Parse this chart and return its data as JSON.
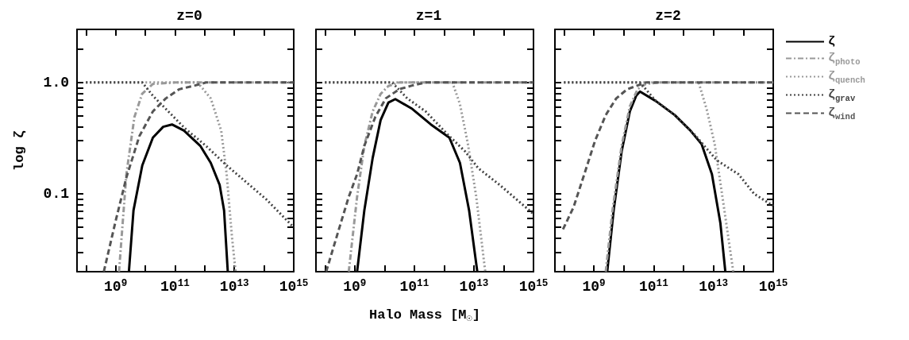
{
  "chart_data": [
    {
      "type": "line",
      "title": "z=0",
      "ylabel": "log ζ",
      "log": "xy",
      "legend": false,
      "xlim": [
        50000000.0,
        1000000000000000.0
      ],
      "ylim": [
        0.02,
        3
      ],
      "xticks": [
        {
          "value": 100000000.0,
          "label": null
        },
        {
          "value": 1000000000.0,
          "label": "10$^{9}$"
        },
        {
          "value": 10000000000.0,
          "label": null
        },
        {
          "value": 100000000000.0,
          "label": "10$^{11}$"
        },
        {
          "value": 1000000000000.0,
          "label": null
        },
        {
          "value": 10000000000000.0,
          "label": "10$^{13}$"
        },
        {
          "value": 100000000000000.0,
          "label": null
        },
        {
          "value": 1000000000000000.0,
          "label": "10$^{15}$"
        }
      ],
      "yticks": [
        {
          "value": 0.02,
          "label": null
        },
        {
          "value": 0.03,
          "label": null
        },
        {
          "value": 0.04,
          "label": null
        },
        {
          "value": 0.05,
          "label": null
        },
        {
          "value": 0.06,
          "label": null
        },
        {
          "value": 0.07,
          "label": null
        },
        {
          "value": 0.08,
          "label": null
        },
        {
          "value": 0.09,
          "label": null
        },
        {
          "value": 0.1,
          "label": "0.1"
        },
        {
          "value": 0.2,
          "label": null
        },
        {
          "value": 0.3,
          "label": null
        },
        {
          "value": 0.4,
          "label": null
        },
        {
          "value": 0.5,
          "label": null
        },
        {
          "value": 0.6,
          "label": null
        },
        {
          "value": 0.7,
          "label": null
        },
        {
          "value": 0.8,
          "label": null
        },
        {
          "value": 0.9,
          "label": null
        },
        {
          "value": 1,
          "label": "1.0"
        },
        {
          "value": 2,
          "label": null
        },
        {
          "value": 3,
          "label": null
        }
      ],
      "series": [
        {
          "color": "#000000",
          "line_style": "solid",
          "x": [
            2800000000.0,
            4000000000.0,
            7900000000.0,
            18000000000.0,
            40000000000.0,
            79000000000.0,
            200000000000.0,
            710000000000.0,
            1600000000000.0,
            3200000000000.0,
            4500000000000.0,
            6000000000000.0
          ],
          "values": [
            0.02,
            0.071,
            0.18,
            0.32,
            0.4,
            0.42,
            0.37,
            0.27,
            0.19,
            0.12,
            0.071,
            0.02
          ]
        },
        {
          "color": "#999999",
          "line_style": "dashdot",
          "x": [
            1300000000.0,
            2300000000.0,
            4300000000.0,
            7800000000.0,
            18000000000.0,
            100000000000.0,
            1000000000000000.0
          ],
          "values": [
            0.02,
            0.15,
            0.49,
            0.79,
            0.97,
            1,
            1
          ]
        },
        {
          "color": "#999999",
          "line_style": "dotted",
          "x": [
            100000000.0,
            580000000000.0,
            1600000000000.0,
            3600000000000.0,
            5500000000000.0,
            8300000000000.0,
            11000000000000.0
          ],
          "values": [
            1,
            1,
            0.72,
            0.37,
            0.15,
            0.041,
            0.02
          ]
        },
        {
          "color": "#444444",
          "line_style": "dotted",
          "x": [
            100000000.0,
            7900000000.0,
            18000000000.0,
            49000000000.0,
            210000000000.0,
            1100000000000.0,
            5500000000000.0,
            23000000000000.0,
            120000000000000.0,
            1000000000000000.0
          ],
          "values": [
            1,
            1,
            0.76,
            0.58,
            0.39,
            0.27,
            0.18,
            0.13,
            0.089,
            0.05
          ]
        },
        {
          "color": "#555555",
          "line_style": "dashed",
          "x": [
            400000000.0,
            1000000000.0,
            2300000000.0,
            6300000000.0,
            18000000000.0,
            49000000000.0,
            140000000000.0,
            470000000000.0,
            1100000000000.0,
            1000000000000000.0
          ],
          "values": [
            0.02,
            0.057,
            0.14,
            0.33,
            0.55,
            0.72,
            0.87,
            0.94,
            1,
            1
          ]
        }
      ]
    },
    {
      "type": "line",
      "title": "z=1",
      "xlabel": "Halo Mass [M$_{☉}$]",
      "log": "xy",
      "legend": false,
      "tick_labels": "x",
      "xlim": [
        50000000.0,
        1000000000000000.0
      ],
      "ylim": [
        0.02,
        3
      ],
      "xticks": [
        {
          "value": 100000000.0,
          "label": null
        },
        {
          "value": 1000000000.0,
          "label": "10$^{9}$"
        },
        {
          "value": 10000000000.0,
          "label": null
        },
        {
          "value": 100000000000.0,
          "label": "10$^{11}$"
        },
        {
          "value": 1000000000000.0,
          "label": null
        },
        {
          "value": 10000000000000.0,
          "label": "10$^{13}$"
        },
        {
          "value": 100000000000000.0,
          "label": null
        },
        {
          "value": 1000000000000000.0,
          "label": "10$^{15}$"
        }
      ],
      "yticks": [
        {
          "value": 0.02,
          "label": null
        },
        {
          "value": 0.03,
          "label": null
        },
        {
          "value": 0.04,
          "label": null
        },
        {
          "value": 0.05,
          "label": null
        },
        {
          "value": 0.06,
          "label": null
        },
        {
          "value": 0.07,
          "label": null
        },
        {
          "value": 0.08,
          "label": null
        },
        {
          "value": 0.09,
          "label": null
        },
        {
          "value": 0.1,
          "label": null
        },
        {
          "value": 0.2,
          "label": null
        },
        {
          "value": 0.3,
          "label": null
        },
        {
          "value": 0.4,
          "label": null
        },
        {
          "value": 0.5,
          "label": null
        },
        {
          "value": 0.6,
          "label": null
        },
        {
          "value": 0.7,
          "label": null
        },
        {
          "value": 0.8,
          "label": null
        },
        {
          "value": 0.9,
          "label": null
        },
        {
          "value": 1,
          "label": null
        },
        {
          "value": 2,
          "label": null
        },
        {
          "value": 3,
          "label": null
        }
      ],
      "series": [
        {
          "color": "#000000",
          "line_style": "solid",
          "x": [
            1200000000.0,
            2100000000.0,
            4000000000.0,
            7400000000.0,
            13500000000.0,
            23000000000.0,
            85000000000.0,
            360000000000.0,
            1500000000000.0,
            3400000000000.0,
            6900000000000.0,
            13000000000000.0
          ],
          "values": [
            0.02,
            0.071,
            0.21,
            0.46,
            0.66,
            0.71,
            0.58,
            0.42,
            0.32,
            0.19,
            0.071,
            0.02
          ]
        },
        {
          "color": "#999999",
          "line_style": "dashdot",
          "x": [
            630000000.0,
            1200000000.0,
            2100000000.0,
            4000000000.0,
            7400000000.0,
            13500000000.0,
            31000000000.0,
            1000000000000000.0
          ],
          "values": [
            0.02,
            0.094,
            0.27,
            0.55,
            0.79,
            0.93,
            1,
            1
          ]
        },
        {
          "color": "#999999",
          "line_style": "dotted",
          "x": [
            100000000.0,
            1900000000000.0,
            3400000000000.0,
            6300000000000.0,
            12000000000000.0,
            24000000000000.0
          ],
          "values": [
            1,
            1,
            0.64,
            0.28,
            0.094,
            0.02
          ]
        },
        {
          "color": "#444444",
          "line_style": "dotted",
          "x": [
            100000000.0,
            18000000000.0,
            58000000000.0,
            240000000000.0,
            1200000000000.0,
            5100000000000.0,
            14000000000000.0,
            74000000000000.0,
            1000000000000000.0
          ],
          "values": [
            1,
            1,
            0.72,
            0.55,
            0.35,
            0.24,
            0.17,
            0.12,
            0.066
          ]
        },
        {
          "color": "#555555",
          "line_style": "dashed",
          "x": [
            110000000.0,
            280000000.0,
            630000000.0,
            1200000000.0,
            2100000000.0,
            4900000000.0,
            11000000000.0,
            31000000000.0,
            85000000000.0,
            240000000000.0,
            1000000000000000.0
          ],
          "values": [
            0.02,
            0.046,
            0.094,
            0.15,
            0.27,
            0.49,
            0.72,
            0.87,
            0.94,
            1,
            1
          ]
        }
      ]
    },
    {
      "type": "line",
      "title": "z=2",
      "log": "xy",
      "legend": "right",
      "tick_labels": "x",
      "xlim": [
        50000000.0,
        1000000000000000.0
      ],
      "ylim": [
        0.02,
        3
      ],
      "xticks": [
        {
          "value": 100000000.0,
          "label": null
        },
        {
          "value": 1000000000.0,
          "label": "10$^{9}$"
        },
        {
          "value": 10000000000.0,
          "label": null
        },
        {
          "value": 100000000000.0,
          "label": "10$^{11}$"
        },
        {
          "value": 1000000000000.0,
          "label": null
        },
        {
          "value": 10000000000000.0,
          "label": "10$^{13}$"
        },
        {
          "value": 100000000000000.0,
          "label": null
        },
        {
          "value": 1000000000000000.0,
          "label": "10$^{15}$"
        }
      ],
      "yticks": [
        {
          "value": 0.02,
          "label": null
        },
        {
          "value": 0.03,
          "label": null
        },
        {
          "value": 0.04,
          "label": null
        },
        {
          "value": 0.05,
          "label": null
        },
        {
          "value": 0.06,
          "label": null
        },
        {
          "value": 0.07,
          "label": null
        },
        {
          "value": 0.08,
          "label": null
        },
        {
          "value": 0.09,
          "label": null
        },
        {
          "value": 0.1,
          "label": null
        },
        {
          "value": 0.2,
          "label": null
        },
        {
          "value": 0.3,
          "label": null
        },
        {
          "value": 0.4,
          "label": null
        },
        {
          "value": 0.5,
          "label": null
        },
        {
          "value": 0.6,
          "label": null
        },
        {
          "value": 0.7,
          "label": null
        },
        {
          "value": 0.8,
          "label": null
        },
        {
          "value": 0.9,
          "label": null
        },
        {
          "value": 1,
          "label": null
        },
        {
          "value": 2,
          "label": null
        },
        {
          "value": 3,
          "label": null
        }
      ],
      "series": [
        {
          "name": "ζ",
          "color": "#000000",
          "line_style": "solid",
          "x": [
            2800000000.0,
            4600000000.0,
            8500000000.0,
            16000000000.0,
            26000000000.0,
            35000000000.0,
            120000000000.0,
            510000000000.0,
            1700000000000.0,
            4000000000000.0,
            8900000000000.0,
            17000000000000.0,
            25000000000000.0
          ],
          "values": [
            0.02,
            0.071,
            0.24,
            0.55,
            0.76,
            0.83,
            0.68,
            0.51,
            0.37,
            0.28,
            0.15,
            0.055,
            0.02
          ]
        },
        {
          "name": "ζ$_{photo}$",
          "color": "#999999",
          "line_style": "dashdot",
          "x": [
            2500000000.0,
            4200000000.0,
            8500000000.0,
            16000000000.0,
            29000000000.0,
            54000000000.0,
            150000000000.0,
            1000000000000000.0
          ],
          "values": [
            0.02,
            0.071,
            0.27,
            0.61,
            0.87,
            0.97,
            1,
            1
          ]
        },
        {
          "name": "ζ$_{quench}$",
          "color": "#999999",
          "line_style": "dotted",
          "x": [
            100000000.0,
            3200000000000.0,
            5900000000000.0,
            11000000000000.0,
            20000000000000.0,
            46000000000000.0
          ],
          "values": [
            1,
            1,
            0.58,
            0.28,
            0.094,
            0.02
          ]
        },
        {
          "name": "ζ$_{grav}$",
          "color": "#444444",
          "line_style": "dotted",
          "x": [
            100000000.0,
            35000000000.0,
            120000000000.0,
            510000000000.0,
            2600000000000.0,
            13000000000000.0,
            69000000000000.0,
            230000000000000.0,
            1000000000000000.0
          ],
          "values": [
            1,
            1,
            0.68,
            0.51,
            0.33,
            0.2,
            0.15,
            0.1,
            0.078
          ]
        },
        {
          "name": "ζ$_{wind}$",
          "color": "#555555",
          "line_style": "dashed",
          "x": [
            93000000.0,
            210000000.0,
            480000000.0,
            1100000000.0,
            2500000000.0,
            5600000000.0,
            13000000000.0,
            29000000000.0,
            54000000000.0,
            1000000000000000.0
          ],
          "values": [
            0.048,
            0.076,
            0.15,
            0.3,
            0.51,
            0.72,
            0.87,
            0.94,
            1,
            1
          ]
        }
      ]
    }
  ]
}
